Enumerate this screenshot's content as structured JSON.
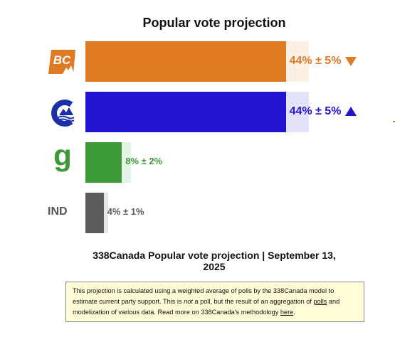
{
  "chart_data": {
    "type": "bar",
    "orientation": "horizontal",
    "title": "Popular vote projection",
    "xlim": [
      0,
      50
    ],
    "grid": false,
    "legend": "none",
    "categories": [
      "BC",
      "Conservative",
      "Green",
      "IND"
    ],
    "series": [
      {
        "values": [
          44,
          44,
          8,
          4
        ],
        "margins": [
          5,
          5,
          2,
          1
        ],
        "labels": [
          "44% ± 5%",
          "44% ± 5%",
          "8% ± 2%",
          "4% ± 1%"
        ],
        "trends": [
          "down",
          "up",
          "",
          ""
        ],
        "colors": [
          "#e07b24",
          "#2213d0",
          "#3c9a36",
          "#5c5c5c"
        ],
        "band_colors": [
          "#fdf0e4",
          "#e4e3fb",
          "#e5f3e4",
          "#e7e7e7"
        ]
      }
    ]
  },
  "logos": {
    "bc": {
      "icon": "bc-united-logo-icon",
      "text": "BC"
    },
    "conservative": {
      "icon": "conservative-party-logo-icon"
    },
    "green": {
      "icon": "green-party-logo-icon",
      "text": "g"
    },
    "ind": {
      "text": "IND"
    }
  },
  "caption": "338Canada Popular vote projection | September 13, 2025",
  "note": {
    "part1": "This projection is calculated using a weighted average of polls by the 338Canada model to estimate current party support. This is ",
    "emph": "not",
    "part2": " a poll, but the result of an aggregation of ",
    "link1": "polls",
    "part3": " and modelization of various data. Read more on 338Canada's methodology ",
    "link2": "here",
    "part4": "."
  }
}
